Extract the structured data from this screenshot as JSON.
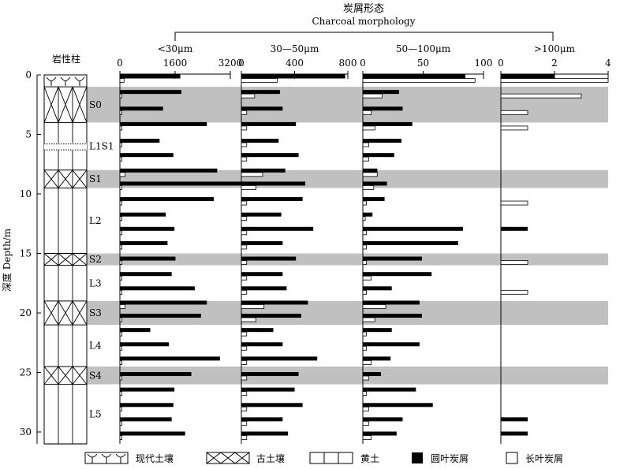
{
  "chart_data": {
    "type": "bar",
    "orientation": "horizontal",
    "title_cn": "炭屑形态",
    "title_en": "Charcoal morphology",
    "column_label": "岩性柱",
    "ylabel": "深度 Depth/m",
    "ylim": [
      0,
      31
    ],
    "yticks": [
      0,
      5,
      10,
      15,
      20,
      25,
      30
    ],
    "colors": {
      "round": "#000000",
      "long": "#ffffff",
      "band": "#c0c0c0"
    },
    "legend": {
      "modern_soil": "现代土壤",
      "paleosol": "古土壤",
      "loess": "黄土",
      "round": "圆叶炭屑",
      "long": "长叶炭屑"
    },
    "strata": [
      {
        "name": "",
        "type": "modern_soil",
        "top": 0,
        "bottom": 1
      },
      {
        "name": "S0",
        "type": "paleosol",
        "top": 1,
        "bottom": 4
      },
      {
        "name": "L1S1",
        "type": "loess_dotted",
        "top": 4,
        "bottom": 8
      },
      {
        "name": "S1",
        "type": "paleosol",
        "top": 8,
        "bottom": 9.5
      },
      {
        "name": "L2",
        "type": "loess",
        "top": 9.5,
        "bottom": 15
      },
      {
        "name": "S2",
        "type": "paleosol",
        "top": 15,
        "bottom": 16
      },
      {
        "name": "L3",
        "type": "loess",
        "top": 16,
        "bottom": 19
      },
      {
        "name": "S3",
        "type": "paleosol",
        "top": 19,
        "bottom": 21
      },
      {
        "name": "L4",
        "type": "loess",
        "top": 21,
        "bottom": 24.5
      },
      {
        "name": "S4",
        "type": "paleosol",
        "top": 24.5,
        "bottom": 26
      },
      {
        "name": "L5",
        "type": "loess",
        "top": 26,
        "bottom": 31
      }
    ],
    "panels": [
      {
        "name": "<30μm",
        "xlim": [
          0,
          3200
        ],
        "ticks": [
          0,
          1600,
          3200
        ],
        "samples": [
          {
            "depth": 0.3,
            "round": 1750,
            "long": 120
          },
          {
            "depth": 1.6,
            "round": 1780,
            "long": 60
          },
          {
            "depth": 3.0,
            "round": 1250,
            "long": 60
          },
          {
            "depth": 4.3,
            "round": 2520,
            "long": 60
          },
          {
            "depth": 5.7,
            "round": 1150,
            "long": 60
          },
          {
            "depth": 6.9,
            "round": 1550,
            "long": 60
          },
          {
            "depth": 8.2,
            "round": 2820,
            "long": 150
          },
          {
            "depth": 9.3,
            "round": 3580,
            "long": 60
          },
          {
            "depth": 10.6,
            "round": 2720,
            "long": 60
          },
          {
            "depth": 11.9,
            "round": 1330,
            "long": 60
          },
          {
            "depth": 13.1,
            "round": 1580,
            "long": 60
          },
          {
            "depth": 14.3,
            "round": 1380,
            "long": 60
          },
          {
            "depth": 15.6,
            "round": 1610,
            "long": 60
          },
          {
            "depth": 16.9,
            "round": 1500,
            "long": 60
          },
          {
            "depth": 18.1,
            "round": 2170,
            "long": 60
          },
          {
            "depth": 19.3,
            "round": 2520,
            "long": 150
          },
          {
            "depth": 20.4,
            "round": 2350,
            "long": 60
          },
          {
            "depth": 21.6,
            "round": 880,
            "long": 60
          },
          {
            "depth": 22.8,
            "round": 1420,
            "long": 60
          },
          {
            "depth": 24.0,
            "round": 2900,
            "long": 60
          },
          {
            "depth": 25.3,
            "round": 2070,
            "long": 60
          },
          {
            "depth": 26.6,
            "round": 1580,
            "long": 60
          },
          {
            "depth": 27.9,
            "round": 1550,
            "long": 60
          },
          {
            "depth": 29.1,
            "round": 1500,
            "long": 60
          },
          {
            "depth": 30.3,
            "round": 1890,
            "long": 60
          }
        ]
      },
      {
        "name": "30—50μm",
        "xlim": [
          0,
          800
        ],
        "ticks": [
          0,
          400,
          800
        ],
        "samples": [
          {
            "depth": 0.3,
            "round": 780,
            "long": 270
          },
          {
            "depth": 1.6,
            "round": 290,
            "long": 100
          },
          {
            "depth": 3.0,
            "round": 310,
            "long": 40
          },
          {
            "depth": 4.3,
            "round": 410,
            "long": 40
          },
          {
            "depth": 5.7,
            "round": 280,
            "long": 40
          },
          {
            "depth": 6.9,
            "round": 430,
            "long": 40
          },
          {
            "depth": 8.2,
            "round": 330,
            "long": 160
          },
          {
            "depth": 9.3,
            "round": 480,
            "long": 110
          },
          {
            "depth": 10.6,
            "round": 460,
            "long": 40
          },
          {
            "depth": 11.9,
            "round": 300,
            "long": 40
          },
          {
            "depth": 13.1,
            "round": 540,
            "long": 40
          },
          {
            "depth": 14.3,
            "round": 310,
            "long": 40
          },
          {
            "depth": 15.6,
            "round": 410,
            "long": 40
          },
          {
            "depth": 16.9,
            "round": 310,
            "long": 40
          },
          {
            "depth": 18.1,
            "round": 340,
            "long": 40
          },
          {
            "depth": 19.3,
            "round": 500,
            "long": 170
          },
          {
            "depth": 20.4,
            "round": 450,
            "long": 110
          },
          {
            "depth": 21.6,
            "round": 240,
            "long": 40
          },
          {
            "depth": 22.8,
            "round": 310,
            "long": 40
          },
          {
            "depth": 24.0,
            "round": 570,
            "long": 40
          },
          {
            "depth": 25.3,
            "round": 430,
            "long": 40
          },
          {
            "depth": 26.6,
            "round": 400,
            "long": 40
          },
          {
            "depth": 27.9,
            "round": 460,
            "long": 40
          },
          {
            "depth": 29.1,
            "round": 310,
            "long": 40
          },
          {
            "depth": 30.3,
            "round": 350,
            "long": 40
          }
        ]
      },
      {
        "name": "50—100μm",
        "xlim": [
          0,
          100
        ],
        "ticks": [
          0,
          50,
          100
        ],
        "samples": [
          {
            "depth": 0.3,
            "round": 85,
            "long": 93
          },
          {
            "depth": 1.6,
            "round": 30,
            "long": 16
          },
          {
            "depth": 3.0,
            "round": 33,
            "long": 7
          },
          {
            "depth": 4.3,
            "round": 41,
            "long": 10
          },
          {
            "depth": 5.7,
            "round": 32,
            "long": 5
          },
          {
            "depth": 6.9,
            "round": 26,
            "long": 5
          },
          {
            "depth": 8.2,
            "round": 12,
            "long": 12
          },
          {
            "depth": 9.3,
            "round": 20,
            "long": 9
          },
          {
            "depth": 10.6,
            "round": 18,
            "long": 3
          },
          {
            "depth": 11.9,
            "round": 8,
            "long": 2
          },
          {
            "depth": 13.1,
            "round": 83,
            "long": 3
          },
          {
            "depth": 14.3,
            "round": 79,
            "long": 3
          },
          {
            "depth": 15.6,
            "round": 49,
            "long": 3
          },
          {
            "depth": 16.9,
            "round": 57,
            "long": 7
          },
          {
            "depth": 18.1,
            "round": 24,
            "long": 3
          },
          {
            "depth": 19.3,
            "round": 47,
            "long": 19
          },
          {
            "depth": 20.4,
            "round": 49,
            "long": 10
          },
          {
            "depth": 21.6,
            "round": 24,
            "long": 3
          },
          {
            "depth": 22.8,
            "round": 47,
            "long": 3
          },
          {
            "depth": 24.0,
            "round": 23,
            "long": 7
          },
          {
            "depth": 25.3,
            "round": 15,
            "long": 5
          },
          {
            "depth": 26.6,
            "round": 44,
            "long": 3
          },
          {
            "depth": 27.9,
            "round": 58,
            "long": 5
          },
          {
            "depth": 29.1,
            "round": 33,
            "long": 5
          },
          {
            "depth": 30.3,
            "round": 28,
            "long": 7
          }
        ]
      },
      {
        "name": ">100μm",
        "xlim": [
          0,
          4
        ],
        "ticks": [
          0,
          2,
          4
        ],
        "samples": [
          {
            "depth": 0.3,
            "round": 2,
            "long": 4
          },
          {
            "depth": 1.6,
            "round": 0,
            "long": 3
          },
          {
            "depth": 3.0,
            "round": 0,
            "long": 1
          },
          {
            "depth": 4.3,
            "round": 0,
            "long": 1
          },
          {
            "depth": 10.6,
            "round": 0,
            "long": 1
          },
          {
            "depth": 13.1,
            "round": 1,
            "long": 0
          },
          {
            "depth": 15.6,
            "round": 0,
            "long": 1
          },
          {
            "depth": 18.1,
            "round": 0,
            "long": 1
          },
          {
            "depth": 29.1,
            "round": 1,
            "long": 0
          },
          {
            "depth": 30.3,
            "round": 1,
            "long": 0
          }
        ]
      }
    ]
  }
}
